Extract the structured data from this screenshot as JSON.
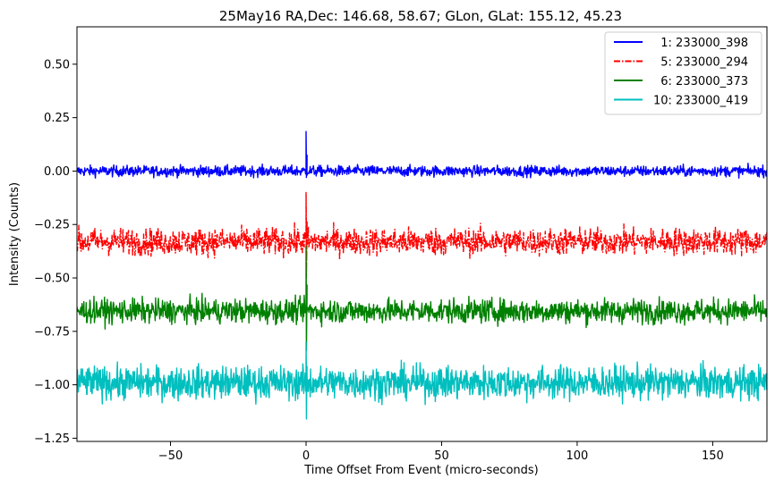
{
  "chart_data": {
    "type": "line",
    "title": "25May16 RA,Dec:  146.68,  58.67; GLon, GLat:  155.12,  45.23",
    "xlabel": "Time Offset From Event (micro-seconds)",
    "ylabel": "Intensity (Counts)",
    "xlim": [
      -84.5,
      170
    ],
    "ylim": [
      -1.265,
      0.675
    ],
    "xticks": [
      -50,
      0,
      50,
      100,
      150
    ],
    "xtick_labels": [
      "−50",
      "0",
      "50",
      "100",
      "150"
    ],
    "yticks": [
      0.5,
      0.25,
      0.0,
      -0.25,
      -0.5,
      -0.75,
      -1.0,
      -1.25
    ],
    "ytick_labels": [
      "0.50",
      "0.25",
      "0.00",
      "−0.25",
      "−0.50",
      "−0.75",
      "−1.00",
      "−1.25"
    ],
    "legend_position": "top-right",
    "series": [
      {
        "name": "1: 233000_398",
        "legend_label": "  1: 233000_398",
        "color": "#0000ff",
        "style": "solid",
        "offset": 0.0,
        "noise_amplitude": 0.018,
        "spike_max": 0.185,
        "spike_min": -0.03
      },
      {
        "name": "5: 233000_294",
        "legend_label": "  5: 233000_294",
        "color": "#ff0000",
        "style": "dashdot",
        "offset": -0.33,
        "noise_amplitude": 0.045,
        "spike_max": -0.1,
        "spike_min": -0.5
      },
      {
        "name": "6: 233000_373",
        "legend_label": "  6: 233000_373",
        "color": "#008000",
        "style": "solid",
        "offset": -0.655,
        "noise_amplitude": 0.04,
        "spike_max": -0.35,
        "spike_min": -0.84
      },
      {
        "name": "10: 233000_419",
        "legend_label": "10: 233000_419",
        "color": "#00bfbf",
        "style": "solid",
        "offset": -0.99,
        "noise_amplitude": 0.055,
        "spike_max": -0.8,
        "spike_min": -1.16
      }
    ],
    "event_time": 0
  }
}
